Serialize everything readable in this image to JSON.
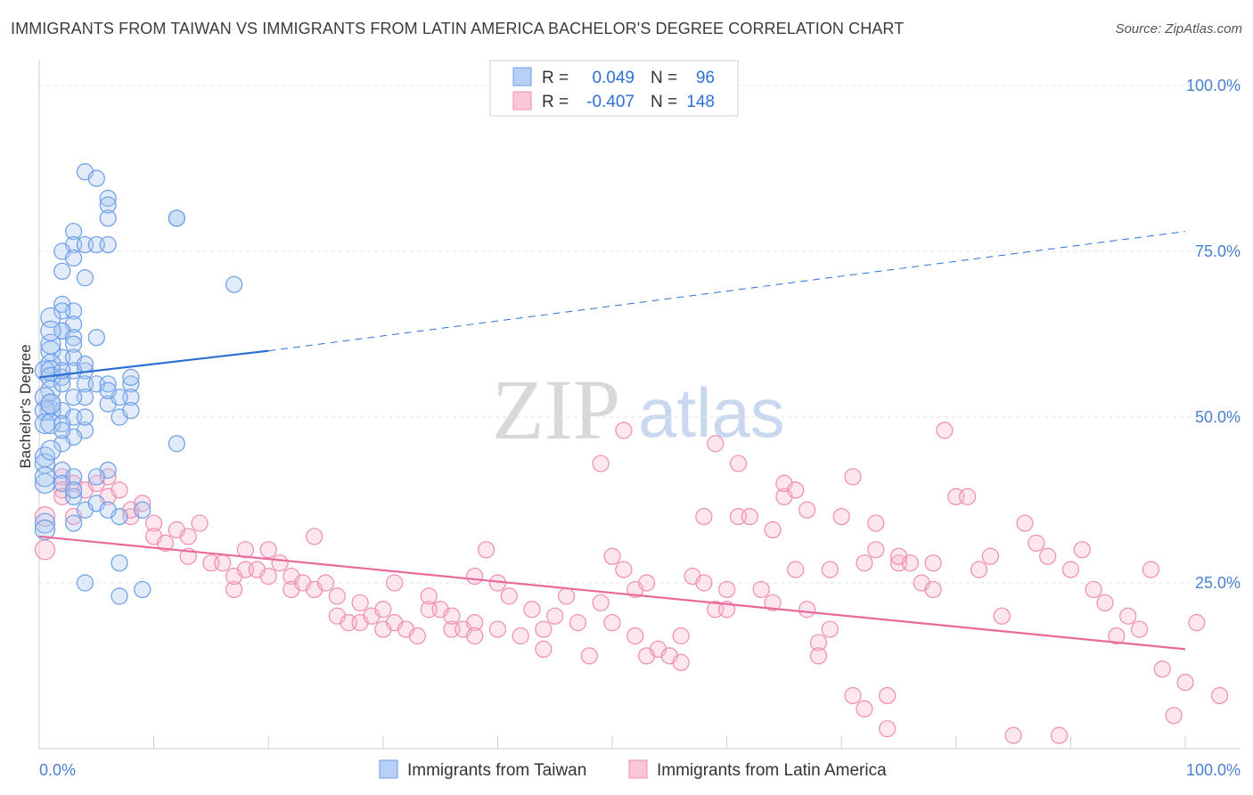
{
  "title": "IMMIGRANTS FROM TAIWAN VS IMMIGRANTS FROM LATIN AMERICA BACHELOR'S DEGREE CORRELATION CHART",
  "source": "Source: ZipAtlas.com",
  "watermark": {
    "zip": "ZIP",
    "atlas": "atlas"
  },
  "legend": {
    "rows": [
      {
        "r_label": "R =",
        "r_value": "0.049",
        "n_label": "N =",
        "n_value": "96"
      },
      {
        "r_label": "R =",
        "r_value": "-0.407",
        "n_label": "N =",
        "n_value": "148"
      }
    ]
  },
  "bottom_legend": [
    "Immigrants from Taiwan",
    "Immigrants from Latin America"
  ],
  "colors": {
    "blue": "#6b9de8",
    "blue_line": "#2e6fd6",
    "pink": "#f08cb0",
    "pink_line": "#e8699a",
    "tick": "#4a7fd0"
  },
  "chart_data": {
    "type": "scatter",
    "title": "IMMIGRANTS FROM TAIWAN VS IMMIGRANTS FROM LATIN AMERICA BACHELOR'S DEGREE CORRELATION CHART",
    "xlabel": "",
    "ylabel": "Bachelor's Degree",
    "xlim": [
      0,
      100
    ],
    "ylim": [
      0,
      103
    ],
    "x_tick_labels": [
      "0.0%",
      "100.0%"
    ],
    "y_tick_labels": [
      "100.0%",
      "75.0%",
      "50.0%",
      "25.0%"
    ],
    "y_ticks": [
      100,
      75,
      50,
      25
    ],
    "series": [
      {
        "name": "Immigrants from Taiwan",
        "r": 0.049,
        "n": 96,
        "trend": {
          "x0": 0,
          "y0": 56,
          "x1": 20,
          "y1": 60,
          "dashed_to_x": 100,
          "dashed_to_y": 78
        },
        "points": [
          [
            4,
            87
          ],
          [
            5,
            86
          ],
          [
            6,
            83
          ],
          [
            6,
            82
          ],
          [
            12,
            80
          ],
          [
            12,
            80
          ],
          [
            6,
            80
          ],
          [
            3,
            78
          ],
          [
            3,
            76
          ],
          [
            4,
            76
          ],
          [
            5,
            76
          ],
          [
            6,
            76
          ],
          [
            2,
            75
          ],
          [
            3,
            74
          ],
          [
            2,
            72
          ],
          [
            4,
            71
          ],
          [
            17,
            70
          ],
          [
            2,
            67
          ],
          [
            3,
            66
          ],
          [
            2,
            66
          ],
          [
            1,
            65
          ],
          [
            3,
            64
          ],
          [
            2,
            63
          ],
          [
            2,
            63
          ],
          [
            3,
            62
          ],
          [
            5,
            62
          ],
          [
            3,
            61
          ],
          [
            1,
            60
          ],
          [
            2,
            59
          ],
          [
            3,
            59
          ],
          [
            1,
            58
          ],
          [
            0.5,
            57
          ],
          [
            1,
            57
          ],
          [
            4,
            57
          ],
          [
            1,
            56
          ],
          [
            2,
            56
          ],
          [
            4,
            55
          ],
          [
            5,
            55
          ],
          [
            8,
            55
          ],
          [
            1,
            54
          ],
          [
            0.5,
            53
          ],
          [
            4,
            53
          ],
          [
            6,
            52
          ],
          [
            8,
            53
          ],
          [
            2,
            51
          ],
          [
            1,
            51
          ],
          [
            0.5,
            51
          ],
          [
            3,
            50
          ],
          [
            7,
            50
          ],
          [
            0.5,
            49
          ],
          [
            1,
            49
          ],
          [
            2,
            49
          ],
          [
            4,
            48
          ],
          [
            3,
            47
          ],
          [
            2,
            46
          ],
          [
            12,
            46
          ],
          [
            0.5,
            44
          ],
          [
            0.5,
            43
          ],
          [
            2,
            42
          ],
          [
            6,
            42
          ],
          [
            3,
            41
          ],
          [
            5,
            41
          ],
          [
            0.5,
            40
          ],
          [
            3,
            38
          ],
          [
            4,
            36
          ],
          [
            9,
            36
          ],
          [
            7,
            35
          ],
          [
            0.5,
            34
          ],
          [
            3,
            34
          ],
          [
            0.5,
            33
          ],
          [
            7,
            28
          ],
          [
            4,
            25
          ],
          [
            9,
            24
          ],
          [
            7,
            23
          ],
          [
            1,
            52
          ],
          [
            2,
            55
          ],
          [
            3,
            57
          ],
          [
            6,
            55
          ],
          [
            4,
            58
          ],
          [
            7,
            53
          ],
          [
            8,
            51
          ],
          [
            1,
            61
          ],
          [
            1,
            45
          ],
          [
            0.5,
            41
          ],
          [
            2,
            40
          ],
          [
            3,
            39
          ],
          [
            5,
            37
          ],
          [
            6,
            36
          ],
          [
            1,
            52
          ],
          [
            2,
            48
          ],
          [
            4,
            50
          ],
          [
            6,
            54
          ],
          [
            8,
            56
          ],
          [
            1,
            63
          ],
          [
            2,
            57
          ],
          [
            3,
            53
          ]
        ]
      },
      {
        "name": "Immigrants from Latin America",
        "r": -0.407,
        "n": 148,
        "trend": {
          "x0": 0,
          "y0": 32,
          "x1": 100,
          "y1": 15
        },
        "points": [
          [
            0.5,
            35
          ],
          [
            0.5,
            30
          ],
          [
            2,
            41
          ],
          [
            2,
            39
          ],
          [
            3,
            40
          ],
          [
            4,
            39
          ],
          [
            5,
            40
          ],
          [
            6,
            41
          ],
          [
            6,
            38
          ],
          [
            7,
            39
          ],
          [
            8,
            35
          ],
          [
            8,
            36
          ],
          [
            9,
            37
          ],
          [
            10,
            34
          ],
          [
            10,
            32
          ],
          [
            11,
            31
          ],
          [
            12,
            33
          ],
          [
            13,
            32
          ],
          [
            14,
            34
          ],
          [
            13,
            29
          ],
          [
            15,
            28
          ],
          [
            16,
            28
          ],
          [
            17,
            24
          ],
          [
            17,
            26
          ],
          [
            18,
            30
          ],
          [
            18,
            27
          ],
          [
            19,
            27
          ],
          [
            20,
            26
          ],
          [
            20,
            30
          ],
          [
            21,
            28
          ],
          [
            22,
            26
          ],
          [
            22,
            24
          ],
          [
            23,
            25
          ],
          [
            24,
            32
          ],
          [
            24,
            24
          ],
          [
            25,
            25
          ],
          [
            26,
            23
          ],
          [
            26,
            20
          ],
          [
            27,
            19
          ],
          [
            28,
            22
          ],
          [
            28,
            19
          ],
          [
            29,
            20
          ],
          [
            30,
            18
          ],
          [
            30,
            21
          ],
          [
            31,
            25
          ],
          [
            31,
            19
          ],
          [
            32,
            18
          ],
          [
            33,
            17
          ],
          [
            34,
            21
          ],
          [
            34,
            23
          ],
          [
            35,
            21
          ],
          [
            36,
            18
          ],
          [
            36,
            20
          ],
          [
            37,
            18
          ],
          [
            38,
            19
          ],
          [
            38,
            17
          ],
          [
            38,
            26
          ],
          [
            39,
            30
          ],
          [
            40,
            25
          ],
          [
            40,
            18
          ],
          [
            41,
            23
          ],
          [
            42,
            17
          ],
          [
            43,
            21
          ],
          [
            44,
            15
          ],
          [
            44,
            18
          ],
          [
            45,
            20
          ],
          [
            46,
            23
          ],
          [
            47,
            19
          ],
          [
            48,
            14
          ],
          [
            49,
            22
          ],
          [
            50,
            19
          ],
          [
            51,
            27
          ],
          [
            52,
            17
          ],
          [
            52,
            24
          ],
          [
            53,
            14
          ],
          [
            54,
            15
          ],
          [
            55,
            14
          ],
          [
            56,
            17
          ],
          [
            56,
            13
          ],
          [
            57,
            26
          ],
          [
            58,
            35
          ],
          [
            58,
            25
          ],
          [
            59,
            21
          ],
          [
            60,
            24
          ],
          [
            60,
            21
          ],
          [
            61,
            35
          ],
          [
            62,
            35
          ],
          [
            63,
            24
          ],
          [
            64,
            22
          ],
          [
            65,
            38
          ],
          [
            65,
            40
          ],
          [
            66,
            27
          ],
          [
            67,
            21
          ],
          [
            68,
            16
          ],
          [
            68,
            14
          ],
          [
            69,
            18
          ],
          [
            70,
            35
          ],
          [
            71,
            8
          ],
          [
            72,
            28
          ],
          [
            72,
            6
          ],
          [
            73,
            30
          ],
          [
            74,
            8
          ],
          [
            74,
            3
          ],
          [
            75,
            28
          ],
          [
            76,
            28
          ],
          [
            77,
            25
          ],
          [
            78,
            28
          ],
          [
            78,
            24
          ],
          [
            80,
            38
          ],
          [
            81,
            38
          ],
          [
            82,
            27
          ],
          [
            83,
            29
          ],
          [
            84,
            20
          ],
          [
            85,
            2
          ],
          [
            86,
            34
          ],
          [
            87,
            31
          ],
          [
            88,
            29
          ],
          [
            89,
            2
          ],
          [
            90,
            27
          ],
          [
            91,
            30
          ],
          [
            92,
            24
          ],
          [
            93,
            22
          ],
          [
            94,
            17
          ],
          [
            95,
            20
          ],
          [
            96,
            18
          ],
          [
            97,
            27
          ],
          [
            98,
            12
          ],
          [
            99,
            5
          ],
          [
            100,
            10
          ],
          [
            101,
            19
          ],
          [
            103,
            8
          ],
          [
            49,
            43
          ],
          [
            51,
            48
          ],
          [
            59,
            46
          ],
          [
            61,
            43
          ],
          [
            64,
            33
          ],
          [
            66,
            39
          ],
          [
            67,
            36
          ],
          [
            71,
            41
          ],
          [
            73,
            34
          ],
          [
            79,
            48
          ],
          [
            50,
            29
          ],
          [
            53,
            25
          ],
          [
            75,
            29
          ],
          [
            69,
            27
          ],
          [
            3,
            35
          ],
          [
            2,
            38
          ]
        ]
      }
    ]
  }
}
